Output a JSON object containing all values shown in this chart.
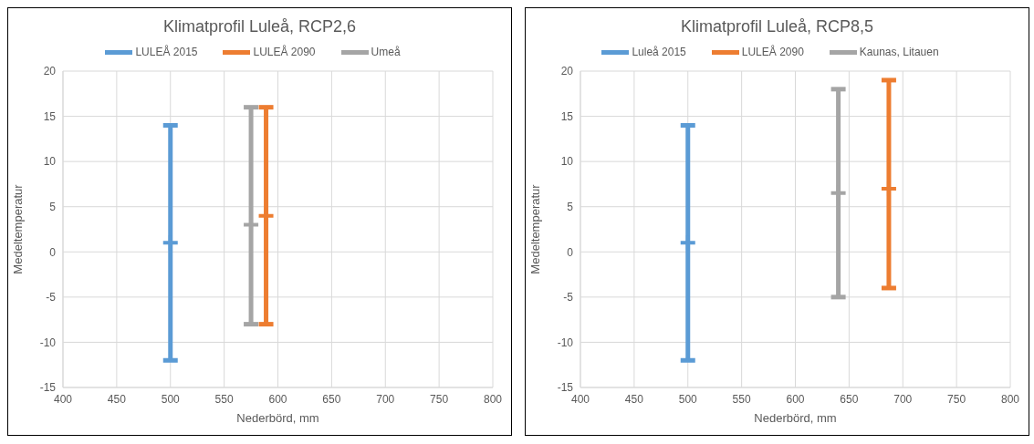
{
  "chart_data": [
    {
      "type": "scatter",
      "title": "Klimatprofil Luleå, RCP2,6",
      "xlabel": "Nederbörd, mm",
      "ylabel": "Medeltemperatur",
      "xlim": [
        400,
        800
      ],
      "xticks": [
        400,
        450,
        500,
        550,
        600,
        650,
        700,
        750,
        800
      ],
      "ylim": [
        -15,
        20
      ],
      "yticks": [
        -15,
        -10,
        -5,
        0,
        5,
        10,
        15,
        20
      ],
      "grid": true,
      "legend": "top",
      "marker": "cross",
      "series": [
        {
          "name": "LULEÅ 2015",
          "color": "#5b9bd5",
          "x": [
            500
          ],
          "values": [
            1
          ],
          "errors": [
            [
              -12,
              14
            ]
          ]
        },
        {
          "name": "LULEÅ 2090",
          "color": "#ed7d31",
          "x": [
            589
          ],
          "values": [
            4
          ],
          "errors": [
            [
              -8,
              16
            ]
          ]
        },
        {
          "name": "Umeå",
          "color": "#a5a5a5",
          "x": [
            575
          ],
          "values": [
            3
          ],
          "errors": [
            [
              -8,
              16
            ]
          ]
        }
      ]
    },
    {
      "type": "scatter",
      "title": "Klimatprofil Luleå, RCP8,5",
      "xlabel": "Nederbörd, mm",
      "ylabel": "Medeltemperatur",
      "xlim": [
        400,
        800
      ],
      "xticks": [
        400,
        450,
        500,
        550,
        600,
        650,
        700,
        750,
        800
      ],
      "ylim": [
        -15,
        20
      ],
      "yticks": [
        -15,
        -10,
        -5,
        0,
        5,
        10,
        15,
        20
      ],
      "grid": true,
      "legend": "top",
      "marker": "cross",
      "series": [
        {
          "name": "Luleå 2015",
          "color": "#5b9bd5",
          "x": [
            500
          ],
          "values": [
            1
          ],
          "errors": [
            [
              -12,
              14
            ]
          ]
        },
        {
          "name": "LULEÅ 2090",
          "color": "#ed7d31",
          "x": [
            687
          ],
          "values": [
            7
          ],
          "errors": [
            [
              -4,
              19
            ]
          ]
        },
        {
          "name": "Kaunas, Litauen",
          "color": "#a5a5a5",
          "x": [
            640
          ],
          "values": [
            6.5
          ],
          "errors": [
            [
              -5,
              18
            ]
          ]
        }
      ]
    }
  ]
}
